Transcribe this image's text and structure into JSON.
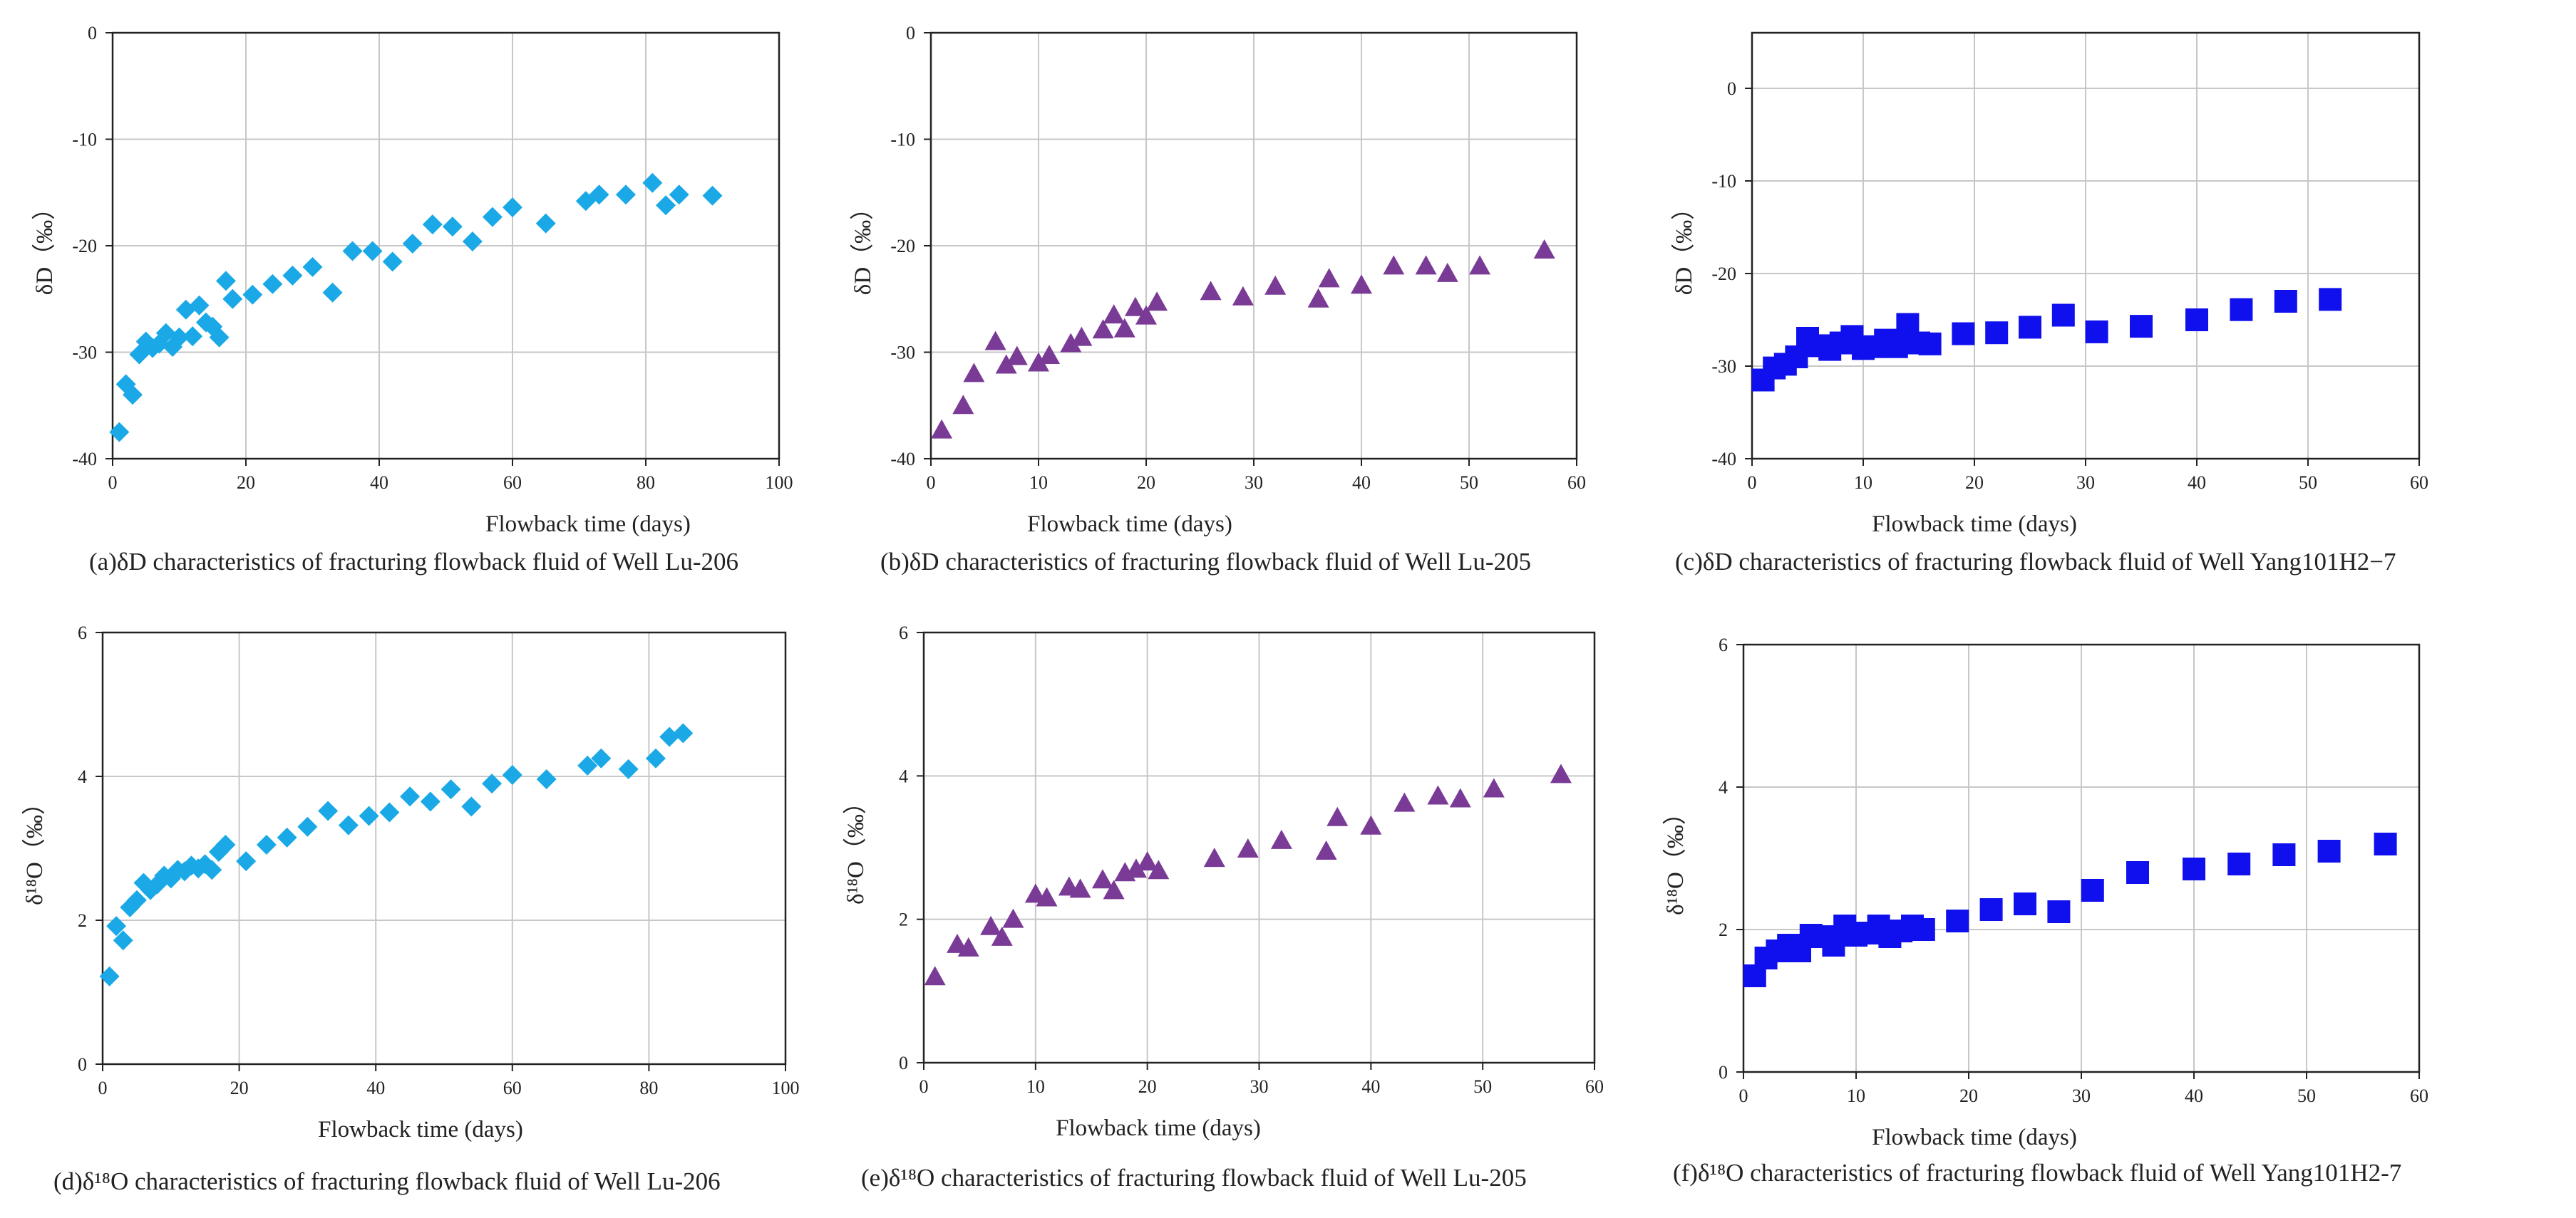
{
  "figure": {
    "panels": [
      {
        "id": "a",
        "caption": "(a)δD characteristics of fracturing flowback fluid of Well Lu-206",
        "chart_data": {
          "type": "scatter",
          "title": "",
          "xlabel": "Flowback time (days)",
          "ylabel": "δD（‰）",
          "xlim": [
            0,
            100
          ],
          "ylim": [
            -40,
            0
          ],
          "xticks": [
            0,
            20,
            40,
            60,
            80,
            100
          ],
          "yticks": [
            -40,
            -30,
            -20,
            -10,
            0
          ],
          "marker": "diamond",
          "color": "#1aa9e6",
          "series": [
            {
              "name": "Lu-206 δD",
              "x": [
                1,
                2,
                3,
                4,
                5,
                6,
                7,
                8,
                9,
                10,
                11,
                12,
                13,
                14,
                15,
                16,
                17,
                18,
                21,
                24,
                27,
                30,
                33,
                36,
                39,
                42,
                45,
                48,
                51,
                54,
                57,
                60,
                65,
                71,
                73,
                77,
                81,
                83,
                85,
                90
              ],
              "y": [
                -37.5,
                -33,
                -34,
                -30.2,
                -29,
                -29.6,
                -29.2,
                -28.2,
                -29.5,
                -28.6,
                -26,
                -28.5,
                -25.6,
                -27.2,
                -27.6,
                -28.6,
                -23.3,
                -25,
                -24.6,
                -23.6,
                -22.8,
                -22,
                -24.4,
                -20.5,
                -20.5,
                -21.5,
                -19.8,
                -18,
                -18.2,
                -19.6,
                -17.3,
                -16.4,
                -17.9,
                -15.8,
                -15.2,
                -15.2,
                -14.1,
                -16.2,
                -15.2,
                -15.3
              ]
            }
          ]
        }
      },
      {
        "id": "b",
        "caption": "(b)δD characteristics of fracturing flowback fluid of Well Lu-205",
        "chart_data": {
          "type": "scatter",
          "title": "",
          "xlabel": "Flowback time (days)",
          "ylabel": "δD（‰）",
          "xlim": [
            0,
            60
          ],
          "ylim": [
            -40,
            0
          ],
          "xticks": [
            0,
            10,
            20,
            30,
            40,
            50,
            60
          ],
          "yticks": [
            -40,
            -30,
            -20,
            -10,
            0
          ],
          "marker": "triangle",
          "color": "#7a3b96",
          "series": [
            {
              "name": "Lu-205 δD",
              "x": [
                1,
                3,
                4,
                6,
                7,
                8,
                10,
                11,
                13,
                14,
                16,
                17,
                18,
                19,
                20,
                21,
                26,
                29,
                32,
                36,
                37,
                40,
                43,
                46,
                48,
                51,
                57
              ],
              "y": [
                -37.3,
                -35,
                -32,
                -29,
                -31.2,
                -30.4,
                -31,
                -30.3,
                -29.2,
                -28.6,
                -27.9,
                -26.5,
                -27.8,
                -25.8,
                -26.6,
                -25.3,
                -24.3,
                -24.8,
                -23.8,
                -25,
                -23.1,
                -23.7,
                -21.9,
                -21.9,
                -22.6,
                -21.9,
                -20.4
              ]
            }
          ]
        }
      },
      {
        "id": "c",
        "caption": "(c)δD characteristics of fracturing flowback fluid of Well Yang101H2−7",
        "chart_data": {
          "type": "scatter",
          "title": "",
          "xlabel": "Flowback time (days)",
          "ylabel": "δD（‰）",
          "xlim": [
            0,
            60
          ],
          "ylim": [
            -40,
            6
          ],
          "xticks": [
            0,
            10,
            20,
            30,
            40,
            50,
            60
          ],
          "yticks": [
            -40,
            -30,
            -20,
            -10,
            0
          ],
          "marker": "square",
          "color": "#1010ee",
          "series": [
            {
              "name": "Yang101H2-7 δD",
              "x": [
                1,
                2,
                3,
                4,
                5,
                6,
                7,
                8,
                9,
                10,
                11,
                12,
                13,
                14,
                15,
                16,
                19,
                22,
                25,
                28,
                31,
                35,
                40,
                44,
                48,
                52
              ],
              "y": [
                -31.5,
                -30.2,
                -29.8,
                -29,
                -27,
                -27.8,
                -28.2,
                -27.5,
                -26.8,
                -28.1,
                -27.9,
                -27.2,
                -27.9,
                -25.5,
                -27.5,
                -27.6,
                -26.5,
                -26.4,
                -25.8,
                -24.5,
                -26.3,
                -25.7,
                -25,
                -23.9,
                -23,
                -22.8
              ]
            }
          ]
        }
      },
      {
        "id": "d",
        "caption": "(d)δ¹⁸O characteristics of fracturing flowback fluid of Well Lu-206",
        "chart_data": {
          "type": "scatter",
          "title": "",
          "xlabel": "Flowback time (days)",
          "ylabel": "δ¹⁸O（‰）",
          "xlim": [
            0,
            100
          ],
          "ylim": [
            0,
            6
          ],
          "xticks": [
            0,
            20,
            40,
            60,
            80,
            100
          ],
          "yticks": [
            0,
            2,
            4,
            6
          ],
          "marker": "diamond",
          "color": "#1aa9e6",
          "series": [
            {
              "name": "Lu-206 δ18O",
              "x": [
                1,
                2,
                3,
                4,
                5,
                6,
                7,
                8,
                9,
                10,
                11,
                12,
                13,
                14,
                15,
                16,
                17,
                18,
                21,
                24,
                27,
                30,
                33,
                36,
                39,
                42,
                45,
                48,
                51,
                54,
                57,
                60,
                65,
                71,
                73,
                77,
                81,
                83,
                85
              ],
              "y": [
                1.22,
                1.92,
                1.72,
                2.18,
                2.28,
                2.52,
                2.42,
                2.5,
                2.62,
                2.58,
                2.7,
                2.68,
                2.76,
                2.72,
                2.78,
                2.7,
                2.95,
                3.05,
                2.82,
                3.05,
                3.15,
                3.3,
                3.52,
                3.32,
                3.45,
                3.5,
                3.72,
                3.65,
                3.82,
                3.58,
                3.9,
                4.02,
                3.96,
                4.15,
                4.25,
                4.1,
                4.25,
                4.55,
                4.6
              ]
            }
          ]
        }
      },
      {
        "id": "e",
        "caption": "(e)δ¹⁸O characteristics of fracturing flowback fluid of Well Lu-205",
        "chart_data": {
          "type": "scatter",
          "title": "",
          "xlabel": "Flowback time (days)",
          "ylabel": "δ¹⁸O（‰）",
          "xlim": [
            0,
            60
          ],
          "ylim": [
            0,
            6
          ],
          "xticks": [
            0,
            10,
            20,
            30,
            40,
            50,
            60
          ],
          "yticks": [
            0,
            2,
            4,
            6
          ],
          "marker": "triangle",
          "color": "#7a3b96",
          "series": [
            {
              "name": "Lu-205 δ18O",
              "x": [
                1,
                3,
                4,
                6,
                7,
                8,
                10,
                11,
                13,
                14,
                16,
                17,
                18,
                19,
                20,
                21,
                26,
                29,
                32,
                36,
                37,
                40,
                43,
                46,
                48,
                51,
                57
              ],
              "y": [
                1.2,
                1.65,
                1.6,
                1.9,
                1.75,
                2.0,
                2.35,
                2.3,
                2.45,
                2.42,
                2.55,
                2.4,
                2.65,
                2.7,
                2.8,
                2.68,
                2.85,
                2.98,
                3.1,
                2.95,
                3.42,
                3.3,
                3.62,
                3.72,
                3.68,
                3.82,
                4.02
              ]
            }
          ]
        }
      },
      {
        "id": "f",
        "caption": "(f)δ¹⁸O characteristics of fracturing flowback fluid of Well Yang101H2-7",
        "chart_data": {
          "type": "scatter",
          "title": "",
          "xlabel": "Flowback time (days)",
          "ylabel": "δ¹⁸O（‰）",
          "xlim": [
            0,
            60
          ],
          "ylim": [
            0,
            6
          ],
          "xticks": [
            0,
            10,
            20,
            30,
            40,
            50,
            60
          ],
          "yticks": [
            0,
            2,
            4,
            6
          ],
          "marker": "square",
          "color": "#1010ee",
          "series": [
            {
              "name": "Yang101H2-7 δ18O",
              "x": [
                1,
                2,
                3,
                4,
                5,
                6,
                7,
                8,
                9,
                10,
                11,
                12,
                13,
                14,
                15,
                16,
                19,
                22,
                25,
                28,
                31,
                35,
                40,
                44,
                48,
                52,
                57
              ],
              "y": [
                1.35,
                1.6,
                1.7,
                1.78,
                1.7,
                1.92,
                1.9,
                1.78,
                2.05,
                1.92,
                1.95,
                2.05,
                1.9,
                1.98,
                2.05,
                2.0,
                2.12,
                2.28,
                2.36,
                2.25,
                2.55,
                2.8,
                2.85,
                2.92,
                3.05,
                3.1,
                3.2
              ]
            }
          ]
        }
      }
    ]
  }
}
